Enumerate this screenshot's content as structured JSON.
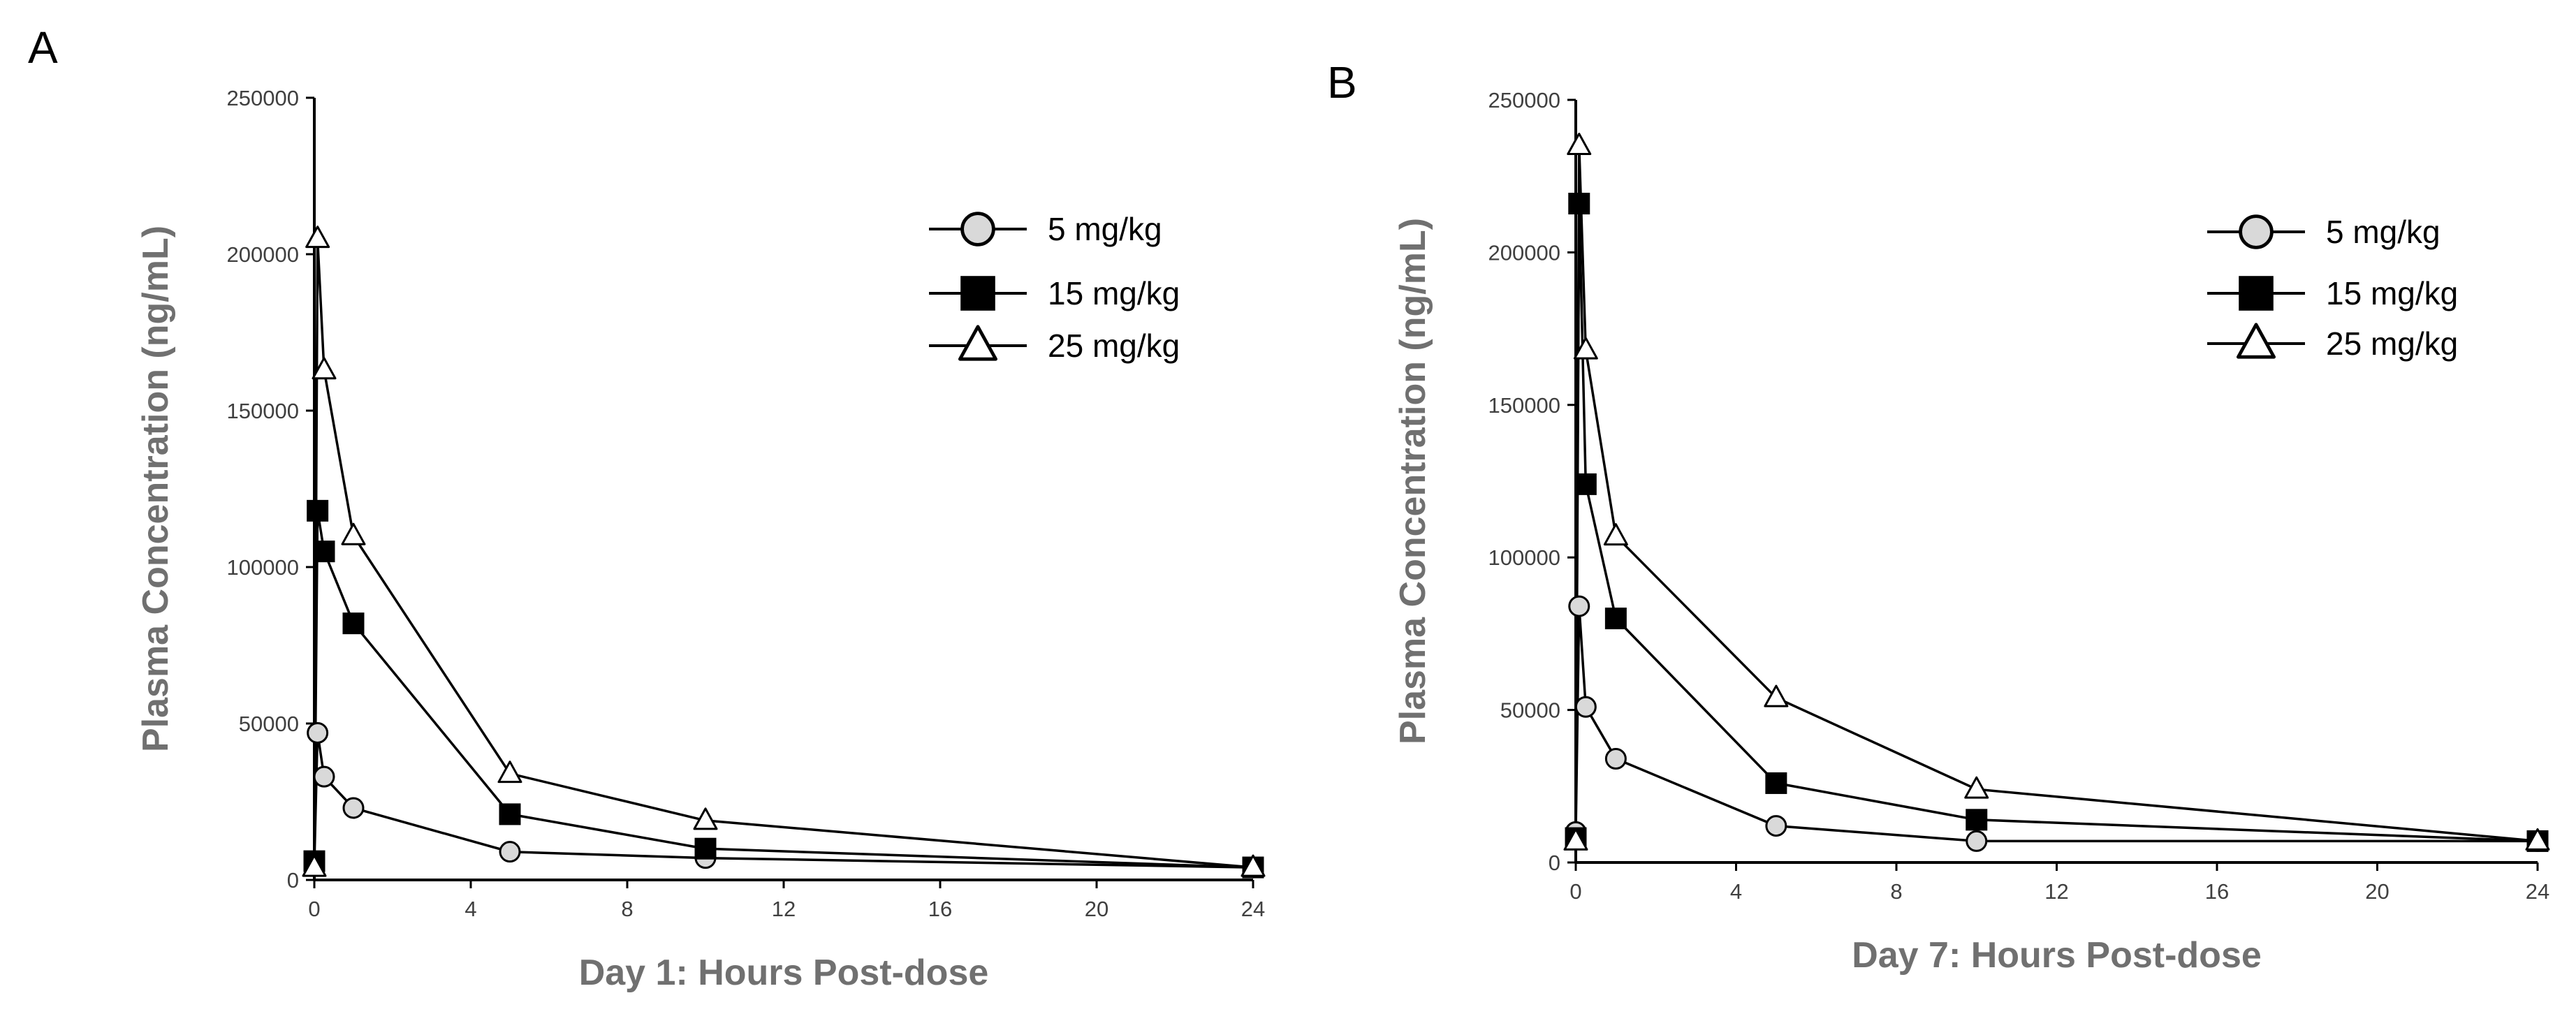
{
  "chart_data": [
    {
      "type": "line",
      "panel_label": "A",
      "title": "",
      "xlabel": "Day 1: Hours Post-dose",
      "ylabel": "Plasma Concentration (ng/mL)",
      "xlim": [
        0,
        24
      ],
      "ylim": [
        0,
        250000
      ],
      "xticks": [
        "0",
        "4",
        "8",
        "12",
        "16",
        "20",
        "24"
      ],
      "yticks": [
        "0",
        "50000",
        "100000",
        "150000",
        "200000",
        "250000"
      ],
      "grid": false,
      "legend_position": "top-right",
      "series": [
        {
          "name": "5 mg/kg",
          "marker": "circle",
          "marker_fill": "#D9D9D9",
          "x": [
            0,
            0.083,
            0.25,
            1,
            5,
            10,
            24
          ],
          "y": [
            5000,
            47000,
            33000,
            23000,
            9000,
            7000,
            4000
          ]
        },
        {
          "name": "15 mg/kg",
          "marker": "square",
          "marker_fill": "#000000",
          "x": [
            0,
            0.083,
            0.25,
            1,
            5,
            10,
            24
          ],
          "y": [
            6000,
            118000,
            105000,
            82000,
            21000,
            10000,
            4000
          ]
        },
        {
          "name": "25 mg/kg",
          "marker": "triangle",
          "marker_fill": "#FFFFFF",
          "x": [
            0,
            0.083,
            0.25,
            1,
            5,
            10,
            24
          ],
          "y": [
            4000,
            205000,
            163000,
            110000,
            34000,
            19000,
            4000
          ]
        }
      ]
    },
    {
      "type": "line",
      "panel_label": "B",
      "title": "",
      "xlabel": "Day 7: Hours Post-dose",
      "ylabel": "Plasma Concentration (ng/mL)",
      "xlim": [
        0,
        24
      ],
      "ylim": [
        0,
        250000
      ],
      "xticks": [
        "0",
        "4",
        "8",
        "12",
        "16",
        "20",
        "24"
      ],
      "yticks": [
        "0",
        "50000",
        "100000",
        "150000",
        "200000",
        "250000"
      ],
      "grid": false,
      "legend_position": "top-right",
      "series": [
        {
          "name": "5 mg/kg",
          "marker": "circle",
          "marker_fill": "#D9D9D9",
          "x": [
            0,
            0.083,
            0.25,
            1,
            5,
            10,
            24
          ],
          "y": [
            10000,
            84000,
            51000,
            34000,
            12000,
            7000,
            7000
          ]
        },
        {
          "name": "15 mg/kg",
          "marker": "square",
          "marker_fill": "#000000",
          "x": [
            0,
            0.083,
            0.25,
            1,
            5,
            10,
            24
          ],
          "y": [
            8000,
            216000,
            124000,
            80000,
            26000,
            14000,
            7000
          ]
        },
        {
          "name": "25 mg/kg",
          "marker": "triangle",
          "marker_fill": "#FFFFFF",
          "x": [
            0,
            0.083,
            0.25,
            1,
            5,
            10,
            24
          ],
          "y": [
            7000,
            235000,
            168000,
            107000,
            54000,
            24000,
            7000
          ]
        }
      ]
    }
  ]
}
